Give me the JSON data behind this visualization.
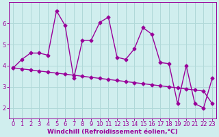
{
  "x": [
    0,
    1,
    2,
    3,
    4,
    5,
    6,
    7,
    8,
    9,
    10,
    11,
    12,
    13,
    14,
    15,
    16,
    17,
    18,
    19,
    20,
    21,
    22,
    23
  ],
  "y_main": [
    3.9,
    4.3,
    4.6,
    4.6,
    4.5,
    6.6,
    5.9,
    3.4,
    5.2,
    5.2,
    6.05,
    6.3,
    4.4,
    4.3,
    4.8,
    5.8,
    5.5,
    4.15,
    4.1,
    2.2,
    4.0,
    2.2,
    2.0,
    3.4
  ],
  "y_trend": [
    3.9,
    3.85,
    3.8,
    3.75,
    3.7,
    3.65,
    3.6,
    3.55,
    3.5,
    3.45,
    3.4,
    3.35,
    3.3,
    3.25,
    3.2,
    3.15,
    3.1,
    3.05,
    3.0,
    2.95,
    2.9,
    2.85,
    2.8,
    2.2
  ],
  "line_color": "#990099",
  "bg_color": "#d0eeee",
  "grid_color": "#b0d8d8",
  "xlabel": "Windchill (Refroidissement éolien,°C)",
  "xlim": [
    -0.5,
    23.5
  ],
  "ylim": [
    1.5,
    7.0
  ],
  "yticks": [
    2,
    3,
    4,
    5,
    6
  ],
  "xticks": [
    0,
    1,
    2,
    3,
    4,
    5,
    6,
    7,
    8,
    9,
    10,
    11,
    12,
    13,
    14,
    15,
    16,
    17,
    18,
    19,
    20,
    21,
    22,
    23
  ],
  "marker": "D",
  "markersize": 2.5,
  "linewidth": 1.0,
  "xlabel_fontsize": 6.5,
  "tick_fontsize": 6.0
}
